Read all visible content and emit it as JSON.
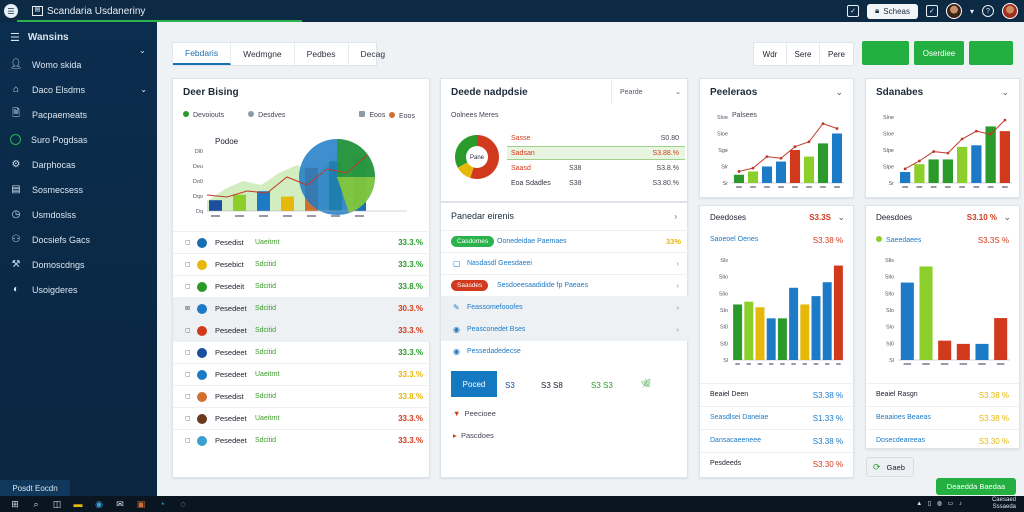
{
  "app": {
    "title": "Scandaria Usdaneriny",
    "title_icon": "window-icon",
    "status_label": "Scheas"
  },
  "sidebar": {
    "header": "Wansins",
    "items": [
      {
        "label": "Womo skida",
        "icon": "user-icon"
      },
      {
        "label": "Daco Elsdms",
        "icon": "home-icon"
      },
      {
        "label": "Pacpaemeats",
        "icon": "document-icon"
      },
      {
        "label": "Suro Pogdsas",
        "icon": "target-icon"
      },
      {
        "label": "Darphocas",
        "icon": "gear-icon"
      },
      {
        "label": "Sosmecsess",
        "icon": "table-icon"
      },
      {
        "label": "Usmdoslss",
        "icon": "clock-icon"
      },
      {
        "label": "Docsiefs Gacs",
        "icon": "people-icon"
      },
      {
        "label": "Domoscdngs",
        "icon": "tools-icon"
      },
      {
        "label": "Usoigderes",
        "icon": "globe-icon"
      }
    ],
    "footer": "Posdt Eocdn"
  },
  "tabs": [
    "Febdaris",
    "Wedmgne",
    "Pedbes",
    "Decag"
  ],
  "view_buttons": [
    "Wdr",
    "Sere",
    "Pere"
  ],
  "header_buttons": [
    "",
    "Oserdiee",
    ""
  ],
  "colors": {
    "green": "#2a9a2a",
    "red": "#d23a1e",
    "yellow": "#e6b80a",
    "blue": "#1d7ac6",
    "lime": "#8ccf2a"
  },
  "card1": {
    "title": "Deer Bising",
    "legend": [
      "Devoiouts",
      "Desdves",
      "Eoos"
    ],
    "chart_label": "Podoe",
    "rows": [
      {
        "name": "Pesedist",
        "sub": "Uaeitrnt",
        "value": "33.3.%",
        "color": "g",
        "icon": "#1a6fb0"
      },
      {
        "name": "Pesebict",
        "sub": "Sdcitid",
        "value": "33.3.%",
        "color": "g",
        "icon": "#e6b80a"
      },
      {
        "name": "Pesedeit",
        "sub": "Sdcitid",
        "value": "33.8.%",
        "color": "g",
        "icon": "#2a9a2a"
      },
      {
        "name": "Pesedeet",
        "sub": "Sdcitid",
        "value": "30.3.%",
        "color": "r",
        "icon": "#1d7ac6"
      },
      {
        "name": "Pesedeet",
        "sub": "Sdcitid",
        "value": "33.3.%",
        "color": "r",
        "icon": "#d23a1e"
      },
      {
        "name": "Pesedeet",
        "sub": "Sdcitid",
        "value": "33.3.%",
        "color": "g",
        "icon": "#1a4f9e"
      },
      {
        "name": "Pesedeet",
        "sub": "Uaeitrnt",
        "value": "33.3.%",
        "color": "y",
        "icon": "#1d7ac6"
      },
      {
        "name": "Pesedist",
        "sub": "Sdcitid",
        "value": "33.8.%",
        "color": "y",
        "icon": "#d07030"
      },
      {
        "name": "Pesedeet",
        "sub": "Uaeitrnt",
        "value": "33.3.%",
        "color": "r",
        "icon": "#6a3a1e"
      },
      {
        "name": "Pesedeet",
        "sub": "Sdcitid",
        "value": "33.3.%",
        "color": "r",
        "icon": "#3aa0d0"
      }
    ]
  },
  "card2": {
    "title": "Deede nadpdsie",
    "dropdown": "Pearde",
    "subtitle": "Oolnees Meres",
    "donut_label": "Pane",
    "legend": [
      {
        "label": "Sasse",
        "v1": "",
        "v2": "S0.80",
        "color": "r"
      },
      {
        "label": "Sadsan",
        "v1": "",
        "v2": "S3.88.%",
        "color": "r"
      },
      {
        "label": "Saasd",
        "v1": "S38",
        "v2": "S3.8.%",
        "color": "r"
      },
      {
        "label": "Eoa Sdadles",
        "v1": "S38",
        "v2": "S3.80.%",
        "color": "r"
      }
    ],
    "list_title": "Panedar eirenis",
    "list_rows": [
      {
        "pill": "Casdomes",
        "text": "Oonedeidae Paemaes",
        "value": "33%",
        "color": "y"
      },
      {
        "pill": "",
        "text": "Nasdasdl  Geesdaeei",
        "value": "",
        "color": ""
      },
      {
        "pill": "Saasdes",
        "text": "Sesdoeesaadidide fp Paeaes",
        "value": "",
        "color": ""
      },
      {
        "pill": "",
        "text": "Feassomefooofes",
        "value": "",
        "color": ""
      },
      {
        "pill": "",
        "text": "Peasconedet Bses",
        "value": "",
        "color": ""
      },
      {
        "pill": "",
        "text": "Pessedadedecse",
        "value": "",
        "color": ""
      }
    ],
    "stats": {
      "box": "Poced",
      "s1": "S3",
      "s2": "S3  S8",
      "s3": "S3  S3"
    },
    "footer_rows": [
      "Peecioee",
      "Pascdoes"
    ]
  },
  "card3": {
    "title": "Peeleraos",
    "legend": "Palsees",
    "list_title": "Deedoses",
    "list_value": "S3.3S",
    "highlight": "Saoeoel Oenes",
    "highlight_value": "S3.38 %",
    "rows": [
      {
        "label": "Beaiel Deen",
        "value": "S3.38 %",
        "color": "b"
      },
      {
        "label": "Seasdlsei Daneiae",
        "value": "S1.33 %",
        "color": "b"
      },
      {
        "label": "Dansacaeeneee",
        "value": "S3.38 %",
        "color": "b"
      },
      {
        "label": "Pesdeeds",
        "value": "S3.30 %",
        "color": "r"
      }
    ]
  },
  "card4": {
    "title": "Sdanabes",
    "list_title": "Deesdoes",
    "list_value": "S3.10 %",
    "highlight": "Saeedaees",
    "highlight_value": "S3.3S %",
    "rows": [
      {
        "label": "Beaiel Rasgn",
        "value": "S3.38 %",
        "color": "y"
      },
      {
        "label": "Beaaioes Beaeas",
        "value": "S3.38 %",
        "color": "y"
      },
      {
        "label": "Dosecdeareeas",
        "value": "S3.30 %",
        "color": "y"
      }
    ],
    "button": "Gaeb"
  },
  "toast": "Deaedda Baedaa",
  "taskbar_clock": [
    "Caesaed",
    "Sssaeda"
  ],
  "chart_data": [
    {
      "type": "bar",
      "name": "card1-combo",
      "categories": [
        "a",
        "b",
        "c",
        "d",
        "e",
        "f",
        "g"
      ],
      "values": [
        12,
        18,
        22,
        16,
        48,
        55,
        60
      ],
      "yticks": [
        "Dl0",
        "Deu",
        "Do0",
        "Dqo",
        "Dq"
      ],
      "colors": [
        "#1a4f9e",
        "#8ccf2a",
        "#1d7ac6",
        "#e6b80a",
        "#d07030",
        "#2a9a2a",
        "#1a6fb0"
      ]
    },
    {
      "type": "bar",
      "name": "card3-top",
      "categories": [
        "a",
        "b",
        "c",
        "d",
        "e",
        "f",
        "g",
        "h"
      ],
      "values": [
        10,
        14,
        20,
        26,
        40,
        32,
        48,
        60
      ],
      "line": [
        14,
        18,
        32,
        30,
        44,
        50,
        72,
        66
      ],
      "yticks": [
        "Sloe",
        "Sloe",
        "Sge",
        "Slr",
        "Sr"
      ],
      "colors": [
        "#2a9a2a",
        "#8ccf2a",
        "#1d7ac6",
        "#1d7ac6",
        "#d23a1e",
        "#8ccf2a",
        "#2a9a2a",
        "#1d7ac6"
      ]
    },
    {
      "type": "bar",
      "name": "card4-top",
      "categories": [
        "a",
        "b",
        "c",
        "d",
        "e",
        "f",
        "g",
        "h"
      ],
      "values": [
        14,
        24,
        30,
        30,
        46,
        48,
        72,
        66
      ],
      "line": [
        18,
        28,
        40,
        38,
        56,
        66,
        62,
        80
      ],
      "yticks": [
        "Slne",
        "Sloe",
        "Slpe",
        "Slpe",
        "Sr"
      ],
      "colors": [
        "#1d7ac6",
        "#8ccf2a",
        "#2a9a2a",
        "#2a9a2a",
        "#8ccf2a",
        "#1d7ac6",
        "#2a9a2a",
        "#d23a1e"
      ]
    },
    {
      "type": "bar",
      "name": "card3-bottom",
      "categories": [
        "a",
        "b",
        "c",
        "d",
        "e",
        "f",
        "g",
        "h",
        "i",
        "j"
      ],
      "values": [
        40,
        42,
        38,
        30,
        30,
        52,
        40,
        46,
        56,
        68
      ],
      "yticks": [
        "Sls",
        "Slio",
        "Slio",
        "Slo",
        "Sl0",
        "Sl0",
        "Sl"
      ],
      "colors": [
        "#2a9a2a",
        "#8ccf2a",
        "#e6b80a",
        "#1d7ac6",
        "#2a9a2a",
        "#1d7ac6",
        "#e6b80a",
        "#1d7ac6",
        "#1d7ac6",
        "#d23a1e"
      ]
    },
    {
      "type": "bar",
      "name": "card4-bottom",
      "categories": [
        "a",
        "b",
        "c",
        "d",
        "e",
        "f"
      ],
      "values": [
        48,
        58,
        12,
        10,
        10,
        26
      ],
      "yticks": [
        "Slls",
        "Sllo",
        "Sllo",
        "Slo",
        "Slo",
        "Sl0",
        "Sl"
      ],
      "colors": [
        "#1d7ac6",
        "#8ccf2a",
        "#d23a1e",
        "#d23a1e",
        "#1d7ac6",
        "#d23a1e"
      ]
    }
  ]
}
